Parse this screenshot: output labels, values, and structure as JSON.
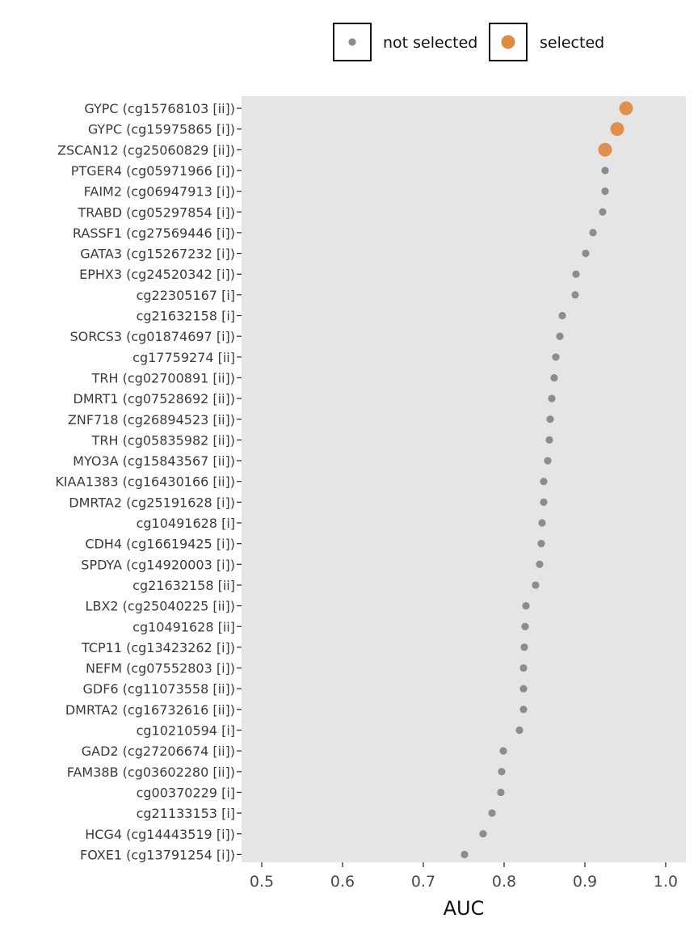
{
  "chart_data": {
    "type": "scatter",
    "xlabel": "AUC",
    "ylabel": "",
    "xlim": [
      0.475,
      1.025
    ],
    "xticks": [
      "0.5",
      "0.6",
      "0.7",
      "0.8",
      "0.9",
      "1.0"
    ],
    "grid": false,
    "panel_background": "#e5e5e5",
    "legend": {
      "placement": "top",
      "items": [
        {
          "label": "not selected",
          "color": "#8c8c8c"
        },
        {
          "label": "selected",
          "color": "#df8a45"
        }
      ]
    },
    "points": [
      {
        "label": "GYPC (cg15768103 [ii])",
        "auc": 0.951,
        "selected": true
      },
      {
        "label": "GYPC (cg15975865 [i])",
        "auc": 0.94,
        "selected": true
      },
      {
        "label": "ZSCAN12 (cg25060829 [ii])",
        "auc": 0.925,
        "selected": true
      },
      {
        "label": "PTGER4 (cg05971966 [i])",
        "auc": 0.925,
        "selected": false
      },
      {
        "label": "FAIM2 (cg06947913 [i])",
        "auc": 0.925,
        "selected": false
      },
      {
        "label": "TRABD (cg05297854 [i])",
        "auc": 0.922,
        "selected": false
      },
      {
        "label": "RASSF1 (cg27569446 [i])",
        "auc": 0.91,
        "selected": false
      },
      {
        "label": "GATA3 (cg15267232 [i])",
        "auc": 0.901,
        "selected": false
      },
      {
        "label": "EPHX3 (cg24520342 [i])",
        "auc": 0.889,
        "selected": false
      },
      {
        "label": "cg22305167 [i]",
        "auc": 0.888,
        "selected": false
      },
      {
        "label": "cg21632158 [i]",
        "auc": 0.872,
        "selected": false
      },
      {
        "label": "SORCS3 (cg01874697 [i])",
        "auc": 0.869,
        "selected": false
      },
      {
        "label": "cg17759274 [ii]",
        "auc": 0.864,
        "selected": false
      },
      {
        "label": "TRH (cg02700891 [ii])",
        "auc": 0.862,
        "selected": false
      },
      {
        "label": "DMRT1 (cg07528692 [ii])",
        "auc": 0.859,
        "selected": false
      },
      {
        "label": "ZNF718 (cg26894523 [ii])",
        "auc": 0.857,
        "selected": false
      },
      {
        "label": "TRH (cg05835982 [ii])",
        "auc": 0.856,
        "selected": false
      },
      {
        "label": "MYO3A (cg15843567 [ii])",
        "auc": 0.854,
        "selected": false
      },
      {
        "label": "KIAA1383 (cg16430166 [ii])",
        "auc": 0.849,
        "selected": false
      },
      {
        "label": "DMRTA2 (cg25191628 [i])",
        "auc": 0.849,
        "selected": false
      },
      {
        "label": "cg10491628 [i]",
        "auc": 0.847,
        "selected": false
      },
      {
        "label": "CDH4 (cg16619425 [i])",
        "auc": 0.846,
        "selected": false
      },
      {
        "label": "SPDYA (cg14920003 [i])",
        "auc": 0.844,
        "selected": false
      },
      {
        "label": "cg21632158 [ii]",
        "auc": 0.839,
        "selected": false
      },
      {
        "label": "LBX2 (cg25040225 [ii])",
        "auc": 0.827,
        "selected": false
      },
      {
        "label": "cg10491628 [ii]",
        "auc": 0.826,
        "selected": false
      },
      {
        "label": "TCP11 (cg13423262 [i])",
        "auc": 0.825,
        "selected": false
      },
      {
        "label": "NEFM (cg07552803 [i])",
        "auc": 0.824,
        "selected": false
      },
      {
        "label": "GDF6 (cg11073558 [ii])",
        "auc": 0.824,
        "selected": false
      },
      {
        "label": "DMRTA2 (cg16732616 [ii])",
        "auc": 0.824,
        "selected": false
      },
      {
        "label": "cg10210594 [i]",
        "auc": 0.819,
        "selected": false
      },
      {
        "label": "GAD2 (cg27206674 [ii])",
        "auc": 0.799,
        "selected": false
      },
      {
        "label": "FAM38B (cg03602280 [ii])",
        "auc": 0.797,
        "selected": false
      },
      {
        "label": "cg00370229 [i]",
        "auc": 0.796,
        "selected": false
      },
      {
        "label": "cg21133153 [i]",
        "auc": 0.785,
        "selected": false
      },
      {
        "label": "HCG4 (cg14443519 [i])",
        "auc": 0.774,
        "selected": false
      },
      {
        "label": "FOXE1 (cg13791254 [i])",
        "auc": 0.751,
        "selected": false
      }
    ]
  }
}
